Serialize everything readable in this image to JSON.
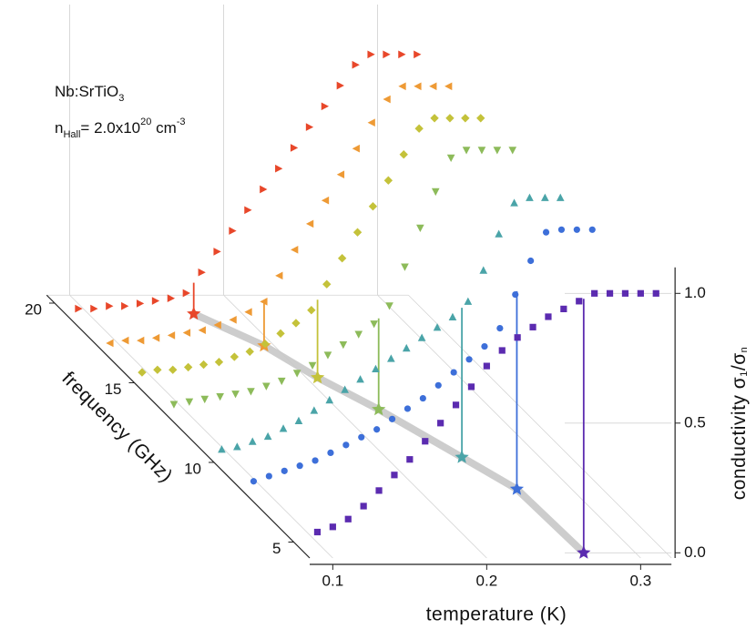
{
  "chart_data": {
    "type": "waterfall",
    "annotation_material": [
      "Nb:SrTiO",
      "3"
    ],
    "annotation_density": [
      "n",
      "Hall",
      "= 2.0x10",
      "20",
      " cm",
      "-3"
    ],
    "x_label": "temperature (K)",
    "z_label": "frequency (GHz)",
    "y_label": [
      "conductivity σ",
      "1",
      "/σ",
      "n"
    ],
    "xlim": [
      0.085,
      0.32
    ],
    "xticks": [
      0.1,
      0.2,
      0.3
    ],
    "zlim": [
      4,
      20.5
    ],
    "zticks": [
      5,
      10,
      15,
      20
    ],
    "ylim": [
      -0.02,
      1.1
    ],
    "yticks": [
      {
        "value": 0,
        "label": "0.0"
      },
      0.5,
      {
        "value": 1,
        "label": "1.0"
      }
    ],
    "grid": true,
    "x": [
      0.09,
      0.1,
      0.11,
      0.12,
      0.13,
      0.14,
      0.15,
      0.16,
      0.17,
      0.18,
      0.19,
      0.2,
      0.21,
      0.22,
      0.23,
      0.24,
      0.25,
      0.26,
      0.27,
      0.28,
      0.29,
      0.3,
      0.31
    ],
    "tc_line_color": "#c8c8c8",
    "series": [
      {
        "frequency": 4,
        "color": "#5b2bb0",
        "marker": "square",
        "tc": 0.263,
        "values": [
          0.08,
          0.1,
          0.13,
          0.18,
          0.24,
          0.3,
          0.36,
          0.43,
          0.5,
          0.57,
          0.64,
          0.72,
          0.78,
          0.83,
          0.87,
          0.91,
          0.94,
          0.97,
          1.0,
          1.0,
          1.0,
          1.0,
          1.0
        ]
      },
      {
        "frequency": 8,
        "color": "#3d6fd9",
        "marker": "circle",
        "tc": 0.261,
        "values": [
          0.03,
          0.05,
          0.07,
          0.09,
          0.11,
          0.14,
          0.17,
          0.2,
          0.23,
          0.27,
          0.31,
          0.35,
          0.4,
          0.45,
          0.5,
          0.55,
          0.62,
          0.75,
          0.88,
          0.99,
          1.0,
          1.0,
          1.0
        ]
      },
      {
        "frequency": 10,
        "color": "#4aa4a8",
        "marker": "triangle-up",
        "tc": 0.246,
        "values": [
          0.03,
          0.04,
          0.06,
          0.08,
          0.11,
          0.14,
          0.18,
          0.22,
          0.26,
          0.3,
          0.34,
          0.38,
          0.42,
          0.46,
          0.5,
          0.54,
          0.6,
          0.72,
          0.86,
          0.98,
          1.0,
          1.0,
          1.0
        ]
      },
      {
        "frequency": 13,
        "color": "#8dbb5a",
        "marker": "triangle-down",
        "tc": 0.223,
        "values": [
          0.02,
          0.03,
          0.04,
          0.05,
          0.06,
          0.07,
          0.09,
          0.11,
          0.14,
          0.17,
          0.21,
          0.25,
          0.29,
          0.33,
          0.4,
          0.55,
          0.7,
          0.84,
          0.97,
          1.0,
          1.0,
          1.0,
          1.0
        ]
      },
      {
        "frequency": 15,
        "color": "#c4c23a",
        "marker": "diamond",
        "tc": 0.204,
        "values": [
          0.02,
          0.03,
          0.03,
          0.04,
          0.05,
          0.06,
          0.08,
          0.1,
          0.13,
          0.17,
          0.21,
          0.26,
          0.36,
          0.46,
          0.56,
          0.66,
          0.76,
          0.86,
          0.96,
          1.0,
          1.0,
          1.0,
          1.0
        ]
      },
      {
        "frequency": 17,
        "color": "#ee9a35",
        "marker": "triangle-left",
        "tc": 0.19,
        "values": [
          0.01,
          0.02,
          0.02,
          0.03,
          0.04,
          0.05,
          0.06,
          0.08,
          0.1,
          0.13,
          0.17,
          0.27,
          0.37,
          0.47,
          0.56,
          0.66,
          0.76,
          0.86,
          0.95,
          1.0,
          1.0,
          1.0,
          1.0
        ]
      },
      {
        "frequency": 19,
        "color": "#e8472a",
        "marker": "triangle-right",
        "tc": 0.165,
        "values": [
          0.02,
          0.02,
          0.03,
          0.03,
          0.04,
          0.05,
          0.06,
          0.08,
          0.16,
          0.24,
          0.32,
          0.4,
          0.48,
          0.56,
          0.64,
          0.72,
          0.8,
          0.88,
          0.96,
          1.0,
          1.0,
          1.0,
          1.0
        ]
      }
    ]
  }
}
